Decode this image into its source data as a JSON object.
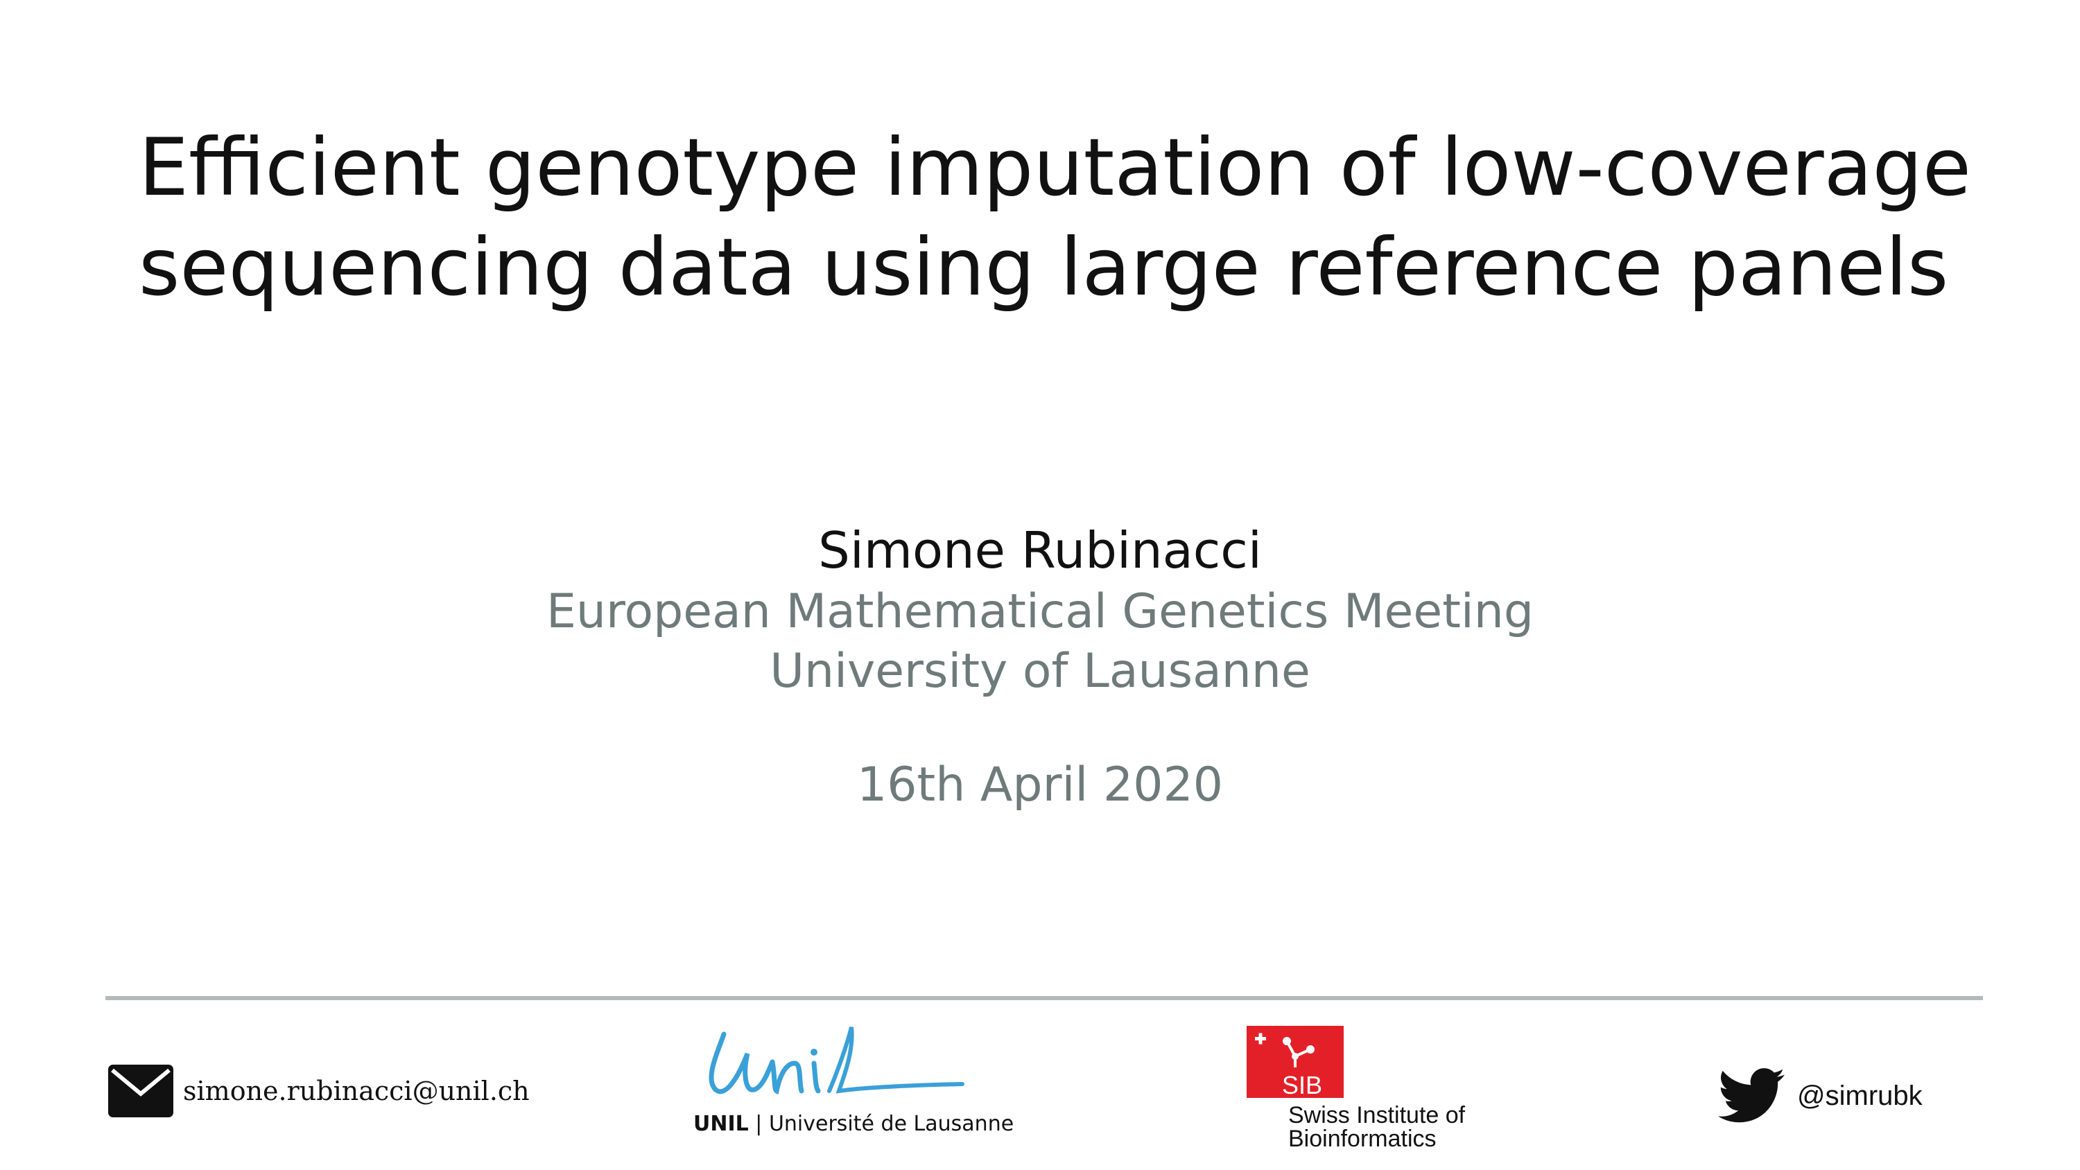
{
  "slide": {
    "title_lines": [
      "Efficient genotype imputation of low-coverage",
      "sequencing data using large reference panels"
    ],
    "author": "Simone Rubinacci",
    "affiliations": [
      "European Mathematical Genetics Meeting",
      "University of Lausanne"
    ],
    "date": "16th April 2020"
  },
  "footer": {
    "email": "simone.rubinacci@unil.ch",
    "email_icon": "envelope-icon",
    "unil": {
      "wordmark": "Unil",
      "abbr": "UNIL",
      "separator": "|",
      "name": "Université de Lausanne",
      "color": "#3aa0d8"
    },
    "sib": {
      "abbr": "SIB",
      "name_lines": [
        "Swiss Institute of",
        "Bioinformatics"
      ],
      "color": "#e32028"
    },
    "twitter_icon": "twitter-bird-icon",
    "twitter_handle": "@simrubk"
  },
  "colors": {
    "title": "#111111",
    "subtitle": "#6f7a7a",
    "divider": "#b4b9b9"
  }
}
